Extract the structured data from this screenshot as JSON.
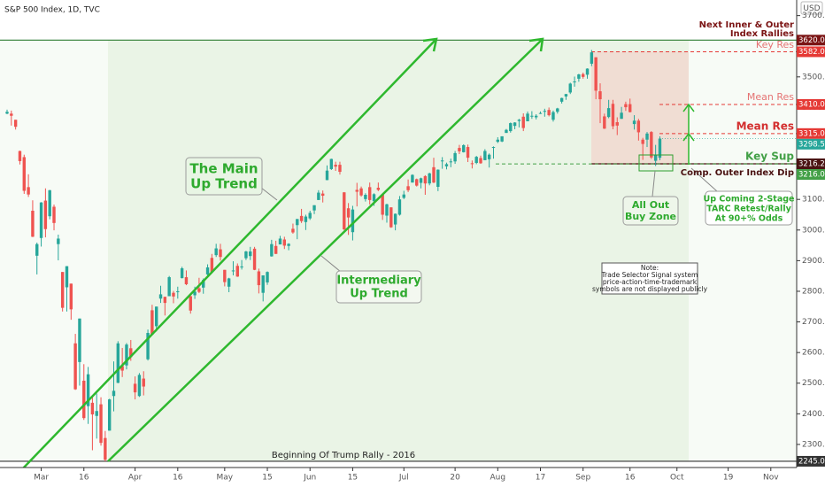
{
  "header": {
    "symbol": "S&P 500 Index, 1D, TVC",
    "currency": "USD"
  },
  "chart_data": {
    "type": "candlestick",
    "up_color": "#26a69a",
    "down_color": "#ef5350",
    "ylim": [
      2161,
      3751
    ],
    "xlim": [
      -1.66,
      185.06
    ],
    "yticks": [
      {
        "value": 3700,
        "label": "3700.0"
      },
      {
        "value": 3500,
        "label": "3500.0"
      },
      {
        "value": 3400,
        "label": "3400.0"
      },
      {
        "value": 3100,
        "label": "3100.0"
      },
      {
        "value": 3000,
        "label": "3000.0"
      },
      {
        "value": 2900,
        "label": "2900.0"
      },
      {
        "value": 2800,
        "label": "2800.0"
      },
      {
        "value": 2700,
        "label": "2700.0"
      },
      {
        "value": 2600,
        "label": "2600.0"
      },
      {
        "value": 2500,
        "label": "2500.0"
      },
      {
        "value": 2400,
        "label": "2400.0"
      },
      {
        "value": 2300,
        "label": "2300.0"
      }
    ],
    "xticks": [
      {
        "value": 8,
        "label": "Mar"
      },
      {
        "value": 18,
        "label": "16"
      },
      {
        "value": 30,
        "label": "Apr"
      },
      {
        "value": 40,
        "label": "16"
      },
      {
        "value": 51,
        "label": "May"
      },
      {
        "value": 61,
        "label": "15"
      },
      {
        "value": 71,
        "label": "Jun"
      },
      {
        "value": 81,
        "label": "15"
      },
      {
        "value": 93,
        "label": "Jul"
      },
      {
        "value": 105,
        "label": "20"
      },
      {
        "value": 115,
        "label": "Aug"
      },
      {
        "value": 125,
        "label": "17"
      },
      {
        "value": 135,
        "label": "Sep"
      },
      {
        "value": 146,
        "label": "16"
      },
      {
        "value": 157,
        "label": "Oct"
      },
      {
        "value": 169,
        "label": "19"
      },
      {
        "value": 179,
        "label": "Nov"
      }
    ],
    "price_labels": [
      {
        "value": 3620,
        "label": "3620.0",
        "color": "#7b1414"
      },
      {
        "value": 3582,
        "label": "3582.0",
        "color": "#e53935"
      },
      {
        "value": 3410,
        "label": "3410.0",
        "color": "#e53935"
      },
      {
        "value": 3315,
        "label": "3315.0",
        "color": "#e53935"
      },
      {
        "value": 3298.5,
        "label": "3298.5",
        "color": "#26a69a"
      },
      {
        "value": 3216.2,
        "label": "3216.2",
        "color": "#4a1212"
      },
      {
        "value": 3216,
        "label": "3216.0",
        "color": "#43a047"
      },
      {
        "value": 2245,
        "label": "2245.0",
        "color": "#333333"
      }
    ],
    "ohlc": [
      [
        3380,
        3393,
        3378,
        3386
      ],
      [
        3380,
        3390,
        3341,
        3373
      ],
      [
        3360,
        3360,
        3328,
        3337
      ],
      [
        3258,
        3259,
        3214,
        3225
      ],
      [
        3238,
        3246,
        3118,
        3128
      ],
      [
        3140,
        3182,
        3108,
        3116
      ],
      [
        3063,
        3097,
        2977,
        2978
      ],
      [
        2916,
        2959,
        2855,
        2954
      ],
      [
        2974,
        3091,
        2946,
        3090
      ],
      [
        3096,
        3136,
        2976,
        3003
      ],
      [
        3045,
        3131,
        3035,
        3130
      ],
      [
        3076,
        3083,
        2999,
        3023
      ],
      [
        2954,
        2985,
        2901,
        2972
      ],
      [
        2863,
        2863,
        2734,
        2746
      ],
      [
        2813,
        2882,
        2734,
        2882
      ],
      [
        2825,
        2825,
        2707,
        2741
      ],
      [
        2630,
        2661,
        2478,
        2480
      ],
      [
        2569,
        2711,
        2492,
        2711
      ],
      [
        2508,
        2562,
        2380,
        2386
      ],
      [
        2425,
        2553,
        2367,
        2529
      ],
      [
        2436,
        2454,
        2281,
        2398
      ],
      [
        2393,
        2466,
        2319,
        2409
      ],
      [
        2431,
        2454,
        2296,
        2305
      ],
      [
        2321,
        2344,
        2245,
        2250
      ],
      [
        2345,
        2449,
        2345,
        2447
      ],
      [
        2458,
        2571,
        2408,
        2475
      ],
      [
        2501,
        2637,
        2500,
        2630
      ],
      [
        2556,
        2615,
        2520,
        2541
      ],
      [
        2558,
        2631,
        2545,
        2626
      ],
      [
        2614,
        2641,
        2573,
        2585
      ],
      [
        2498,
        2522,
        2447,
        2470
      ],
      [
        2458,
        2533,
        2455,
        2527
      ],
      [
        2515,
        2539,
        2460,
        2489
      ],
      [
        2578,
        2675,
        2574,
        2664
      ],
      [
        2738,
        2756,
        2657,
        2659
      ],
      [
        2686,
        2750,
        2669,
        2750
      ],
      [
        2776,
        2818,
        2762,
        2790
      ],
      [
        2782,
        2782,
        2721,
        2762
      ],
      [
        2784,
        2850,
        2784,
        2846
      ],
      [
        2795,
        2801,
        2761,
        2783
      ],
      [
        2799,
        2815,
        2776,
        2800
      ],
      [
        2843,
        2880,
        2842,
        2875
      ],
      [
        2846,
        2868,
        2820,
        2823
      ],
      [
        2784,
        2785,
        2727,
        2737
      ],
      [
        2787,
        2815,
        2775,
        2799
      ],
      [
        2810,
        2844,
        2794,
        2798
      ],
      [
        2812,
        2842,
        2792,
        2837
      ],
      [
        2855,
        2888,
        2852,
        2878
      ],
      [
        2909,
        2922,
        2859,
        2863
      ],
      [
        2918,
        2955,
        2912,
        2940
      ],
      [
        2937,
        2955,
        2900,
        2912
      ],
      [
        2870,
        2870,
        2816,
        2830
      ],
      [
        2815,
        2844,
        2797,
        2842
      ],
      [
        2868,
        2898,
        2852,
        2868
      ],
      [
        2883,
        2891,
        2847,
        2848
      ],
      [
        2878,
        2902,
        2871,
        2881
      ],
      [
        2908,
        2932,
        2902,
        2930
      ],
      [
        2915,
        2945,
        2902,
        2930
      ],
      [
        2939,
        2945,
        2869,
        2870
      ],
      [
        2865,
        2874,
        2793,
        2820
      ],
      [
        2795,
        2852,
        2767,
        2852
      ],
      [
        2829,
        2865,
        2821,
        2863
      ],
      [
        2914,
        2968,
        2913,
        2954
      ],
      [
        2948,
        2965,
        2922,
        2922
      ],
      [
        2953,
        2981,
        2953,
        2972
      ],
      [
        2969,
        2978,
        2938,
        2949
      ],
      [
        2948,
        2957,
        2934,
        2955
      ],
      [
        3004,
        3021,
        2988,
        2992
      ],
      [
        3016,
        3036,
        2970,
        3036
      ],
      [
        3046,
        3069,
        3023,
        3029
      ],
      [
        3026,
        3050,
        3000,
        3044
      ],
      [
        3038,
        3063,
        3033,
        3056
      ],
      [
        3064,
        3081,
        3052,
        3081
      ],
      [
        3098,
        3130,
        3098,
        3122
      ],
      [
        3119,
        3129,
        3090,
        3112
      ],
      [
        3163,
        3211,
        3163,
        3194
      ],
      [
        3199,
        3233,
        3196,
        3232
      ],
      [
        3213,
        3223,
        3193,
        3207
      ],
      [
        3213,
        3223,
        3181,
        3190
      ],
      [
        3123,
        3124,
        3000,
        3002
      ],
      [
        3071,
        3088,
        2984,
        3041
      ],
      [
        2993,
        3079,
        2966,
        3067
      ],
      [
        3131,
        3154,
        3077,
        3125
      ],
      [
        3136,
        3142,
        3109,
        3113
      ],
      [
        3101,
        3120,
        3093,
        3115
      ],
      [
        3140,
        3155,
        3083,
        3098
      ],
      [
        3094,
        3120,
        3079,
        3117
      ],
      [
        3138,
        3155,
        3127,
        3131
      ],
      [
        3115,
        3115,
        3033,
        3050
      ],
      [
        3047,
        3086,
        3024,
        3084
      ],
      [
        3074,
        3074,
        3007,
        3009
      ],
      [
        3018,
        3054,
        2999,
        3053
      ],
      [
        3050,
        3111,
        3047,
        3100
      ],
      [
        3105,
        3128,
        3101,
        3116
      ],
      [
        3143,
        3165,
        3124,
        3130
      ],
      [
        3155,
        3182,
        3155,
        3180
      ],
      [
        3166,
        3168,
        3142,
        3145
      ],
      [
        3154,
        3171,
        3136,
        3169
      ],
      [
        3176,
        3179,
        3115,
        3152
      ],
      [
        3152,
        3187,
        3146,
        3185
      ],
      [
        3205,
        3236,
        3153,
        3155
      ],
      [
        3141,
        3198,
        3127,
        3197
      ],
      [
        3225,
        3238,
        3200,
        3227
      ],
      [
        3208,
        3220,
        3198,
        3215
      ],
      [
        3224,
        3233,
        3205,
        3224
      ],
      [
        3224,
        3258,
        3216,
        3251
      ],
      [
        3268,
        3278,
        3248,
        3257
      ],
      [
        3254,
        3280,
        3253,
        3277
      ],
      [
        3271,
        3279,
        3222,
        3236
      ],
      [
        3218,
        3227,
        3201,
        3216
      ],
      [
        3219,
        3242,
        3215,
        3239
      ],
      [
        3235,
        3243,
        3216,
        3218
      ],
      [
        3228,
        3264,
        3228,
        3258
      ],
      [
        3231,
        3250,
        3204,
        3246
      ],
      [
        3270,
        3273,
        3233,
        3271
      ],
      [
        3288,
        3303,
        3284,
        3295
      ],
      [
        3289,
        3306,
        3287,
        3306
      ],
      [
        3317,
        3330,
        3317,
        3327
      ],
      [
        3323,
        3351,
        3318,
        3349
      ],
      [
        3340,
        3352,
        3329,
        3351
      ],
      [
        3356,
        3363,
        3335,
        3360
      ],
      [
        3370,
        3381,
        3323,
        3333
      ],
      [
        3355,
        3387,
        3355,
        3380
      ],
      [
        3373,
        3388,
        3363,
        3373
      ],
      [
        3368,
        3378,
        3361,
        3373
      ],
      [
        3380,
        3387,
        3379,
        3382
      ],
      [
        3387,
        3396,
        3370,
        3389
      ],
      [
        3392,
        3400,
        3371,
        3375
      ],
      [
        3360,
        3390,
        3354,
        3385
      ],
      [
        3386,
        3399,
        3380,
        3397
      ],
      [
        3419,
        3432,
        3413,
        3431
      ],
      [
        3436,
        3444,
        3425,
        3444
      ],
      [
        3449,
        3481,
        3444,
        3478
      ],
      [
        3485,
        3501,
        3468,
        3485
      ],
      [
        3494,
        3510,
        3484,
        3508
      ],
      [
        3509,
        3514,
        3494,
        3500
      ],
      [
        3507,
        3528,
        3494,
        3527
      ],
      [
        3543,
        3588,
        3535,
        3580
      ],
      [
        3564,
        3564,
        3427,
        3455
      ],
      [
        3453,
        3479,
        3349,
        3427
      ],
      [
        3371,
        3380,
        3330,
        3331
      ],
      [
        3369,
        3425,
        3365,
        3398
      ],
      [
        3412,
        3425,
        3329,
        3339
      ],
      [
        3352,
        3368,
        3310,
        3341
      ],
      [
        3363,
        3402,
        3363,
        3383
      ],
      [
        3411,
        3419,
        3389,
        3401
      ],
      [
        3411,
        3429,
        3384,
        3385
      ],
      [
        3346,
        3375,
        3328,
        3357
      ],
      [
        3357,
        3363,
        3292,
        3319
      ],
      [
        3295,
        3301,
        3229,
        3281
      ],
      [
        3295,
        3320,
        3271,
        3315
      ],
      [
        3320,
        3323,
        3232,
        3237
      ],
      [
        3226,
        3278,
        3209,
        3246
      ],
      [
        3236,
        3306,
        3228,
        3298.5
      ]
    ],
    "annotations": {
      "next_rallies": [
        "Next Inner & Outer",
        "Index Rallies"
      ],
      "key_res": "Key Res",
      "mean_res_1": "Mean Res",
      "mean_res_2": "Mean Res",
      "key_sup": "Key Sup",
      "outer_dip": "Comp. Outer Index Dip",
      "main_trend": [
        "The Main",
        "Up Trend"
      ],
      "inter_trend": [
        "Intermediary",
        "Up Trend"
      ],
      "buy_zone": [
        "All Out",
        "Buy Zone"
      ],
      "upcoming": [
        "Up Coming 2-Stage",
        "TARC Retest/Rally",
        "At 90+% Odds"
      ],
      "note": [
        "Note:",
        "Trade Selector Signal system",
        "price-action-time-trademark",
        "symbols are not displayed publicly"
      ],
      "trump_rally": "Beginning Of Trump Rally - 2016"
    }
  }
}
